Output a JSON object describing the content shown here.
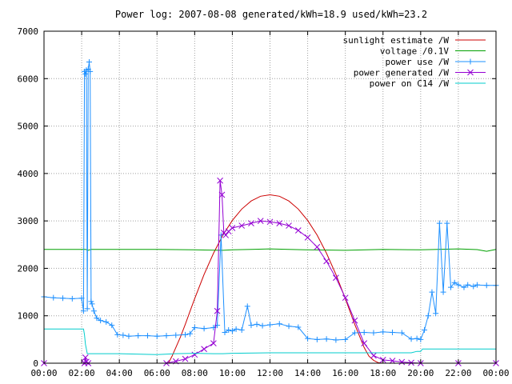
{
  "chart_data": {
    "type": "line",
    "title": "Power log: 2007-08-08 generated/kWh=18.9 used/kWh=23.2",
    "xlabel": "",
    "ylabel": "",
    "xlim": [
      0,
      24
    ],
    "ylim": [
      0,
      7000
    ],
    "x_ticks": [
      0,
      2,
      4,
      6,
      8,
      10,
      12,
      14,
      16,
      18,
      20,
      22,
      24
    ],
    "x_tick_labels": [
      "00:00",
      "02:00",
      "04:00",
      "06:00",
      "08:00",
      "10:00",
      "12:00",
      "14:00",
      "16:00",
      "18:00",
      "20:00",
      "22:00",
      "00:00"
    ],
    "y_ticks": [
      0,
      1000,
      2000,
      3000,
      4000,
      5000,
      6000,
      7000
    ],
    "y_tick_labels": [
      "0",
      "1000",
      "2000",
      "3000",
      "4000",
      "5000",
      "6000",
      "7000"
    ],
    "grid": true,
    "legend_position": "top-right",
    "series": [
      {
        "name": "sunlight estimate /W",
        "color": "#cc0000",
        "marker": "none",
        "x": [
          0,
          6.6,
          6.8,
          7.0,
          7.25,
          7.5,
          7.75,
          8.0,
          8.5,
          9.0,
          9.5,
          10.0,
          10.5,
          11.0,
          11.5,
          12.0,
          12.5,
          13.0,
          13.5,
          14.0,
          14.5,
          15.0,
          15.5,
          16.0,
          16.5,
          17.0,
          17.25,
          17.5,
          17.75,
          18.0,
          24
        ],
        "y": [
          0,
          0,
          150,
          330,
          560,
          820,
          1090,
          1360,
          1870,
          2320,
          2700,
          3010,
          3250,
          3420,
          3520,
          3550,
          3520,
          3420,
          3250,
          3010,
          2700,
          2320,
          1870,
          1360,
          820,
          330,
          150,
          60,
          10,
          0,
          0
        ]
      },
      {
        "name": "voltage /0.1V",
        "color": "#00a000",
        "marker": "none",
        "x": [
          0,
          2.2,
          2.35,
          2.5,
          4,
          6,
          8,
          9.5,
          10,
          11,
          12,
          13,
          14,
          16,
          18,
          20,
          22,
          23,
          23.5,
          24
        ],
        "y": [
          2400,
          2400,
          2380,
          2400,
          2400,
          2400,
          2390,
          2380,
          2390,
          2400,
          2410,
          2400,
          2390,
          2380,
          2400,
          2390,
          2410,
          2395,
          2360,
          2400
        ]
      },
      {
        "name": "power use /W",
        "color": "#1e90ff",
        "marker": "+",
        "x": [
          0,
          0.5,
          1.0,
          1.5,
          2.0,
          2.1,
          2.15,
          2.2,
          2.25,
          2.3,
          2.35,
          2.4,
          2.45,
          2.5,
          2.55,
          2.65,
          2.8,
          3.0,
          3.3,
          3.6,
          3.9,
          4.2,
          4.5,
          5.0,
          5.5,
          6.0,
          6.5,
          7.0,
          7.5,
          7.75,
          8.0,
          8.5,
          9.0,
          9.2,
          9.4,
          9.6,
          9.8,
          10.0,
          10.2,
          10.5,
          10.8,
          11.0,
          11.3,
          11.6,
          12.0,
          12.5,
          13.0,
          13.5,
          14.0,
          14.5,
          15.0,
          15.5,
          16.0,
          16.5,
          17.0,
          17.5,
          18.0,
          18.5,
          19.0,
          19.5,
          19.8,
          20.0,
          20.2,
          20.4,
          20.6,
          20.8,
          21.0,
          21.2,
          21.4,
          21.6,
          21.8,
          22.0,
          22.3,
          22.5,
          22.8,
          23.0,
          23.5,
          24.0
        ],
        "y": [
          1400,
          1380,
          1370,
          1360,
          1370,
          1100,
          6150,
          6100,
          6180,
          1150,
          6200,
          6350,
          6150,
          1300,
          1250,
          1100,
          950,
          900,
          870,
          800,
          600,
          590,
          570,
          580,
          580,
          570,
          580,
          590,
          600,
          620,
          750,
          730,
          750,
          800,
          2700,
          650,
          700,
          680,
          720,
          700,
          1200,
          800,
          820,
          790,
          810,
          830,
          780,
          760,
          520,
          500,
          510,
          490,
          500,
          640,
          650,
          640,
          660,
          650,
          640,
          510,
          520,
          500,
          700,
          1000,
          1500,
          1050,
          2950,
          1500,
          2950,
          1600,
          1700,
          1650,
          1600,
          1650,
          1620,
          1650,
          1640,
          1640
        ]
      },
      {
        "name": "power generated /W",
        "color": "#9400d3",
        "marker": "x",
        "x": [
          0,
          2.15,
          2.2,
          2.25,
          2.35,
          6.5,
          7.0,
          7.5,
          8.0,
          8.5,
          9.0,
          9.2,
          9.35,
          9.45,
          9.55,
          9.65,
          9.8,
          10.0,
          10.5,
          11.0,
          11.5,
          12.0,
          12.5,
          13.0,
          13.5,
          14.0,
          14.5,
          15.0,
          15.5,
          16.0,
          16.5,
          17.0,
          17.5,
          18.0,
          18.5,
          19.0,
          19.5,
          20.0,
          22.0,
          24.0
        ],
        "y": [
          0,
          0,
          120,
          30,
          0,
          0,
          40,
          90,
          180,
          300,
          420,
          1100,
          3850,
          3550,
          2750,
          2700,
          2780,
          2850,
          2900,
          2950,
          3000,
          2980,
          2950,
          2900,
          2800,
          2650,
          2450,
          2150,
          1800,
          1380,
          900,
          420,
          160,
          70,
          50,
          25,
          10,
          0,
          0,
          0
        ]
      },
      {
        "name": "power on C14 /W",
        "color": "#00cccc",
        "marker": "none",
        "x": [
          0,
          2.1,
          2.15,
          2.2,
          2.3,
          2.4,
          4,
          6,
          7,
          8,
          9,
          9.5,
          10,
          12,
          14,
          16,
          18,
          19.5,
          19.8,
          20,
          20.1,
          22,
          24
        ],
        "y": [
          720,
          720,
          600,
          400,
          200,
          200,
          200,
          180,
          200,
          210,
          200,
          200,
          210,
          220,
          220,
          220,
          220,
          220,
          250,
          250,
          300,
          300,
          300
        ]
      }
    ]
  }
}
